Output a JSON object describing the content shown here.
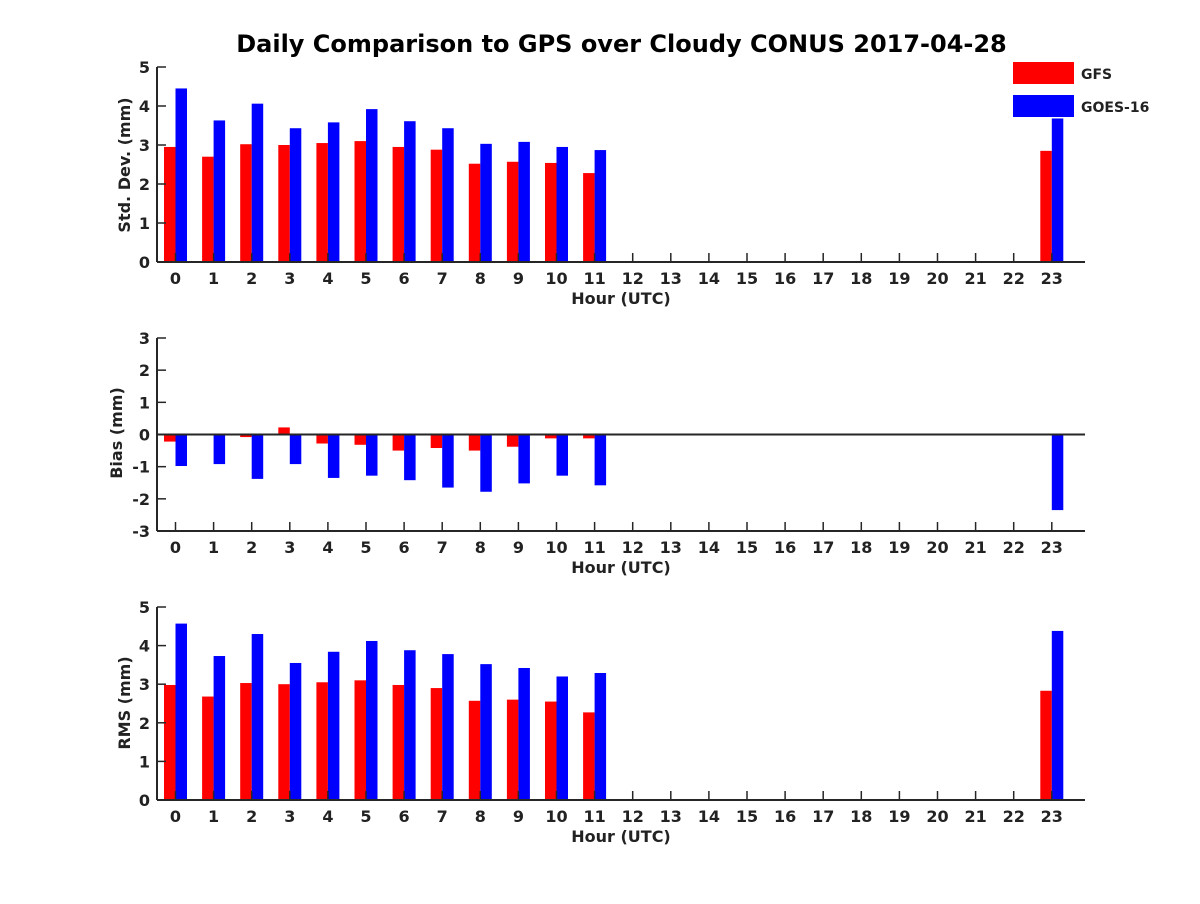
{
  "title": "Daily Comparison to GPS over Cloudy CONUS 2017-04-28",
  "legend": {
    "placement": "top-right",
    "items": [
      {
        "label": "GFS",
        "color": "#ff0000"
      },
      {
        "label": "GOES-16",
        "color": "#0000ff"
      }
    ]
  },
  "chart_data": [
    {
      "type": "bar",
      "xlabel": "Hour (UTC)",
      "ylabel": "Std. Dev. (mm)",
      "ylim": [
        0,
        5
      ],
      "yticks": [
        "0",
        "1",
        "2",
        "3",
        "4",
        "5"
      ],
      "categories": [
        "0",
        "1",
        "2",
        "3",
        "4",
        "5",
        "6",
        "7",
        "8",
        "9",
        "10",
        "11",
        "12",
        "13",
        "14",
        "15",
        "16",
        "17",
        "18",
        "19",
        "20",
        "21",
        "22",
        "23"
      ],
      "series": [
        {
          "name": "GFS",
          "color": "#ff0000",
          "values": [
            2.95,
            2.7,
            3.02,
            3.0,
            3.05,
            3.1,
            2.95,
            2.88,
            2.52,
            2.57,
            2.54,
            2.28,
            null,
            null,
            null,
            null,
            null,
            null,
            null,
            null,
            null,
            null,
            null,
            2.85
          ]
        },
        {
          "name": "GOES-16",
          "color": "#0000ff",
          "values": [
            4.45,
            3.63,
            4.06,
            3.43,
            3.58,
            3.92,
            3.61,
            3.43,
            3.03,
            3.08,
            2.95,
            2.87,
            null,
            null,
            null,
            null,
            null,
            null,
            null,
            null,
            null,
            null,
            null,
            3.68
          ]
        }
      ],
      "grid": false
    },
    {
      "type": "bar",
      "xlabel": "Hour (UTC)",
      "ylabel": "Bias (mm)",
      "ylim": [
        -3,
        3
      ],
      "yticks": [
        "-3",
        "-2",
        "-1",
        "0",
        "1",
        "2",
        "3"
      ],
      "categories": [
        "0",
        "1",
        "2",
        "3",
        "4",
        "5",
        "6",
        "7",
        "8",
        "9",
        "10",
        "11",
        "12",
        "13",
        "14",
        "15",
        "16",
        "17",
        "18",
        "19",
        "20",
        "21",
        "22",
        "23"
      ],
      "series": [
        {
          "name": "GFS",
          "color": "#ff0000",
          "values": [
            -0.22,
            -0.02,
            -0.08,
            0.22,
            -0.28,
            -0.32,
            -0.5,
            -0.42,
            -0.5,
            -0.38,
            -0.12,
            -0.12,
            null,
            null,
            null,
            null,
            null,
            null,
            null,
            null,
            null,
            null,
            null,
            -0.03
          ]
        },
        {
          "name": "GOES-16",
          "color": "#0000ff",
          "values": [
            -0.98,
            -0.92,
            -1.38,
            -0.92,
            -1.35,
            -1.28,
            -1.42,
            -1.65,
            -1.78,
            -1.52,
            -1.28,
            -1.58,
            null,
            null,
            null,
            null,
            null,
            null,
            null,
            null,
            null,
            null,
            null,
            -2.35
          ]
        }
      ],
      "grid": false
    },
    {
      "type": "bar",
      "xlabel": "Hour (UTC)",
      "ylabel": "RMS (mm)",
      "ylim": [
        0,
        5
      ],
      "yticks": [
        "0",
        "1",
        "2",
        "3",
        "4",
        "5"
      ],
      "categories": [
        "0",
        "1",
        "2",
        "3",
        "4",
        "5",
        "6",
        "7",
        "8",
        "9",
        "10",
        "11",
        "12",
        "13",
        "14",
        "15",
        "16",
        "17",
        "18",
        "19",
        "20",
        "21",
        "22",
        "23"
      ],
      "series": [
        {
          "name": "GFS",
          "color": "#ff0000",
          "values": [
            2.98,
            2.68,
            3.03,
            3.0,
            3.05,
            3.1,
            2.98,
            2.9,
            2.57,
            2.6,
            2.55,
            2.27,
            null,
            null,
            null,
            null,
            null,
            null,
            null,
            null,
            null,
            null,
            null,
            2.83
          ]
        },
        {
          "name": "GOES-16",
          "color": "#0000ff",
          "values": [
            4.57,
            3.73,
            4.3,
            3.55,
            3.84,
            4.12,
            3.88,
            3.78,
            3.52,
            3.42,
            3.2,
            3.29,
            null,
            null,
            null,
            null,
            null,
            null,
            null,
            null,
            null,
            null,
            null,
            4.38
          ]
        }
      ],
      "grid": false
    }
  ]
}
